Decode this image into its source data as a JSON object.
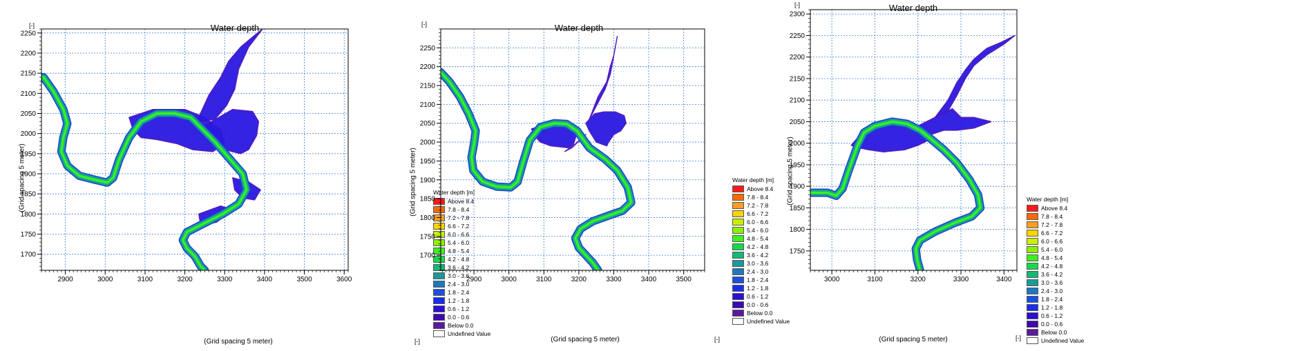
{
  "legend": {
    "title": "Water depth [m]",
    "items": [
      {
        "label": "Above 8.4",
        "color": "#ff1a1a"
      },
      {
        "label": "7.8 - 8.4",
        "color": "#ff6a00"
      },
      {
        "label": "7.2 - 7.8",
        "color": "#ffa020"
      },
      {
        "label": "6.6 - 7.2",
        "color": "#ffd400"
      },
      {
        "label": "6.0 - 6.6",
        "color": "#c8f000"
      },
      {
        "label": "5.4 - 6.0",
        "color": "#8ef000"
      },
      {
        "label": "4.8 - 5.4",
        "color": "#3ef020"
      },
      {
        "label": "4.2 - 4.8",
        "color": "#18d84a"
      },
      {
        "label": "3.6 - 4.2",
        "color": "#14b878"
      },
      {
        "label": "3.0 - 3.6",
        "color": "#1a9a9a"
      },
      {
        "label": "2.4 - 3.0",
        "color": "#1c78c0"
      },
      {
        "label": "1.8 - 2.4",
        "color": "#1c50e0"
      },
      {
        "label": "1.2 - 1.8",
        "color": "#1a2cf0"
      },
      {
        "label": "0.6 - 1.2",
        "color": "#2a10d8"
      },
      {
        "label": "0.0 - 0.6",
        "color": "#3c0ab0"
      },
      {
        "label": "Below 0.0",
        "color": "#5a1aa0"
      },
      {
        "label": "Undefined Value",
        "color": "#ffffff"
      }
    ]
  },
  "chart_data": [
    {
      "type": "heatmap",
      "title": "Water depth",
      "xlabel": "(Grid spacing 5 meter)",
      "ylabel": "(Grid spacing 5 meter)",
      "x_unit": "[-]",
      "y_unit": "[-]",
      "xlim": [
        2840,
        3610
      ],
      "ylim": [
        1660,
        2260
      ],
      "xticks": [
        2900,
        3000,
        3100,
        3200,
        3300,
        3400,
        3500,
        3600
      ],
      "yticks": [
        1700,
        1750,
        1800,
        1850,
        1900,
        1950,
        2000,
        2050,
        2100,
        2150,
        2200,
        2250
      ],
      "grid": true,
      "legend_position": "right",
      "river_path": [
        [
          2845,
          2140
        ],
        [
          2870,
          2105
        ],
        [
          2895,
          2060
        ],
        [
          2905,
          2025
        ],
        [
          2895,
          1990
        ],
        [
          2890,
          1955
        ],
        [
          2905,
          1920
        ],
        [
          2935,
          1895
        ],
        [
          2975,
          1885
        ],
        [
          3005,
          1878
        ],
        [
          3020,
          1890
        ],
        [
          3035,
          1935
        ],
        [
          3060,
          1990
        ],
        [
          3090,
          2030
        ],
        [
          3130,
          2050
        ],
        [
          3175,
          2050
        ],
        [
          3215,
          2040
        ],
        [
          3245,
          2010
        ],
        [
          3275,
          1980
        ],
        [
          3310,
          1940
        ],
        [
          3345,
          1900
        ],
        [
          3355,
          1860
        ],
        [
          3335,
          1825
        ],
        [
          3295,
          1800
        ],
        [
          3245,
          1775
        ],
        [
          3205,
          1755
        ],
        [
          3195,
          1735
        ],
        [
          3205,
          1715
        ],
        [
          3225,
          1695
        ],
        [
          3240,
          1670
        ],
        [
          3250,
          1660
        ]
      ],
      "flood_regions": [
        [
          [
            3060,
            2040
          ],
          [
            3120,
            2060
          ],
          [
            3200,
            2060
          ],
          [
            3250,
            2040
          ],
          [
            3290,
            2010
          ],
          [
            3300,
            1975
          ],
          [
            3270,
            1955
          ],
          [
            3220,
            1960
          ],
          [
            3180,
            1975
          ],
          [
            3130,
            1985
          ],
          [
            3090,
            1990
          ],
          [
            3070,
            2010
          ]
        ],
        [
          [
            3250,
            2020
          ],
          [
            3320,
            2060
          ],
          [
            3370,
            2055
          ],
          [
            3385,
            2030
          ],
          [
            3380,
            1995
          ],
          [
            3360,
            1960
          ],
          [
            3340,
            1950
          ],
          [
            3300,
            1960
          ],
          [
            3270,
            1985
          ]
        ],
        [
          [
            3230,
            2030
          ],
          [
            3260,
            2095
          ],
          [
            3290,
            2140
          ],
          [
            3310,
            2180
          ],
          [
            3340,
            2215
          ],
          [
            3370,
            2240
          ],
          [
            3395,
            2260
          ],
          [
            3360,
            2215
          ],
          [
            3335,
            2160
          ],
          [
            3325,
            2110
          ],
          [
            3305,
            2070
          ],
          [
            3275,
            2035
          ]
        ],
        [
          [
            3320,
            1890
          ],
          [
            3360,
            1880
          ],
          [
            3390,
            1860
          ],
          [
            3375,
            1835
          ],
          [
            3345,
            1840
          ],
          [
            3325,
            1860
          ]
        ],
        [
          [
            3235,
            1800
          ],
          [
            3290,
            1820
          ],
          [
            3320,
            1810
          ],
          [
            3280,
            1780
          ],
          [
            3240,
            1770
          ]
        ]
      ]
    },
    {
      "type": "heatmap",
      "title": "Water depth",
      "xlabel": "(Grid spacing 5 meter)",
      "ylabel": "(Grid spacing 5 meter)",
      "x_unit": "[-]",
      "y_unit": "[-]",
      "xlim": [
        2805,
        3560
      ],
      "ylim": [
        1660,
        2300
      ],
      "xticks": [
        2900,
        3000,
        3100,
        3200,
        3300,
        3400,
        3500
      ],
      "yticks": [
        1700,
        1750,
        1800,
        1850,
        1900,
        1950,
        2000,
        2050,
        2100,
        2150,
        2200,
        2250
      ],
      "grid": true,
      "legend_position": "right",
      "river_path": [
        [
          2805,
          2185
        ],
        [
          2830,
          2160
        ],
        [
          2860,
          2120
        ],
        [
          2885,
          2075
        ],
        [
          2905,
          2030
        ],
        [
          2900,
          1995
        ],
        [
          2893,
          1960
        ],
        [
          2898,
          1925
        ],
        [
          2925,
          1895
        ],
        [
          2965,
          1882
        ],
        [
          3005,
          1880
        ],
        [
          3025,
          1895
        ],
        [
          3040,
          1945
        ],
        [
          3060,
          2005
        ],
        [
          3090,
          2040
        ],
        [
          3130,
          2050
        ],
        [
          3165,
          2048
        ],
        [
          3195,
          2030
        ],
        [
          3230,
          1985
        ],
        [
          3275,
          1955
        ],
        [
          3310,
          1925
        ],
        [
          3340,
          1880
        ],
        [
          3350,
          1840
        ],
        [
          3325,
          1818
        ],
        [
          3285,
          1805
        ],
        [
          3240,
          1790
        ],
        [
          3205,
          1770
        ],
        [
          3190,
          1745
        ],
        [
          3200,
          1720
        ],
        [
          3220,
          1700
        ],
        [
          3240,
          1680
        ],
        [
          3255,
          1660
        ]
      ],
      "flood_regions": [
        [
          [
            3065,
            2035
          ],
          [
            3100,
            2045
          ],
          [
            3140,
            2050
          ],
          [
            3175,
            2045
          ],
          [
            3195,
            2025
          ],
          [
            3185,
            1995
          ],
          [
            3170,
            1985
          ],
          [
            3120,
            1990
          ],
          [
            3090,
            2000
          ],
          [
            3075,
            2015
          ]
        ],
        [
          [
            3220,
            2050
          ],
          [
            3245,
            2075
          ],
          [
            3270,
            2080
          ],
          [
            3305,
            2080
          ],
          [
            3330,
            2070
          ],
          [
            3335,
            2050
          ],
          [
            3320,
            2030
          ],
          [
            3300,
            2020
          ],
          [
            3285,
            2000
          ],
          [
            3280,
            1990
          ],
          [
            3250,
            2000
          ],
          [
            3230,
            2030
          ]
        ],
        [
          [
            3230,
            2060
          ],
          [
            3255,
            2120
          ],
          [
            3280,
            2160
          ],
          [
            3290,
            2200
          ],
          [
            3300,
            2230
          ],
          [
            3310,
            2280
          ],
          [
            3300,
            2230
          ],
          [
            3290,
            2180
          ],
          [
            3275,
            2140
          ],
          [
            3255,
            2105
          ]
        ],
        [
          [
            3220,
            2020
          ],
          [
            3180,
            1985
          ],
          [
            3160,
            1975
          ],
          [
            3190,
            1995
          ]
        ]
      ]
    },
    {
      "type": "heatmap",
      "title": "Water depth",
      "xlabel": "(Grid spacing 5 meter)",
      "ylabel": "(Grid spacing 5 meter)",
      "x_unit": "[-]",
      "y_unit": "[-]",
      "xlim": [
        2950,
        3430
      ],
      "ylim": [
        1705,
        2310
      ],
      "xticks": [
        3000,
        3100,
        3200,
        3300,
        3400
      ],
      "yticks": [
        1750,
        1800,
        1850,
        1900,
        1950,
        2000,
        2050,
        2100,
        2150,
        2200,
        2250,
        2300
      ],
      "grid": true,
      "legend_position": "right",
      "river_path": [
        [
          2950,
          1885
        ],
        [
          2990,
          1885
        ],
        [
          3010,
          1878
        ],
        [
          3025,
          1895
        ],
        [
          3040,
          1940
        ],
        [
          3060,
          1995
        ],
        [
          3075,
          2025
        ],
        [
          3100,
          2040
        ],
        [
          3140,
          2050
        ],
        [
          3175,
          2045
        ],
        [
          3205,
          2030
        ],
        [
          3230,
          2010
        ],
        [
          3260,
          1985
        ],
        [
          3290,
          1955
        ],
        [
          3320,
          1915
        ],
        [
          3340,
          1880
        ],
        [
          3345,
          1850
        ],
        [
          3325,
          1830
        ],
        [
          3285,
          1815
        ],
        [
          3240,
          1795
        ],
        [
          3205,
          1775
        ],
        [
          3195,
          1755
        ],
        [
          3198,
          1730
        ],
        [
          3205,
          1705
        ]
      ],
      "flood_regions": [
        [
          [
            3045,
            1995
          ],
          [
            3070,
            2025
          ],
          [
            3115,
            2040
          ],
          [
            3165,
            2042
          ],
          [
            3200,
            2030
          ],
          [
            3220,
            2005
          ],
          [
            3200,
            1995
          ],
          [
            3170,
            1985
          ],
          [
            3120,
            1980
          ],
          [
            3085,
            1985
          ],
          [
            3060,
            1990
          ]
        ],
        [
          [
            3200,
            2040
          ],
          [
            3240,
            2060
          ],
          [
            3280,
            2080
          ],
          [
            3300,
            2060
          ],
          [
            3330,
            2060
          ],
          [
            3370,
            2050
          ],
          [
            3330,
            2035
          ],
          [
            3290,
            2030
          ],
          [
            3260,
            2030
          ],
          [
            3230,
            2020
          ]
        ],
        [
          [
            3240,
            2060
          ],
          [
            3270,
            2100
          ],
          [
            3290,
            2140
          ],
          [
            3310,
            2170
          ],
          [
            3330,
            2195
          ],
          [
            3360,
            2220
          ],
          [
            3395,
            2235
          ],
          [
            3425,
            2250
          ],
          [
            3400,
            2230
          ],
          [
            3360,
            2205
          ],
          [
            3330,
            2180
          ],
          [
            3310,
            2150
          ],
          [
            3290,
            2110
          ],
          [
            3270,
            2075
          ]
        ],
        [
          [
            3040,
            1920
          ],
          [
            3025,
            1890
          ],
          [
            3035,
            1905
          ]
        ]
      ]
    }
  ]
}
